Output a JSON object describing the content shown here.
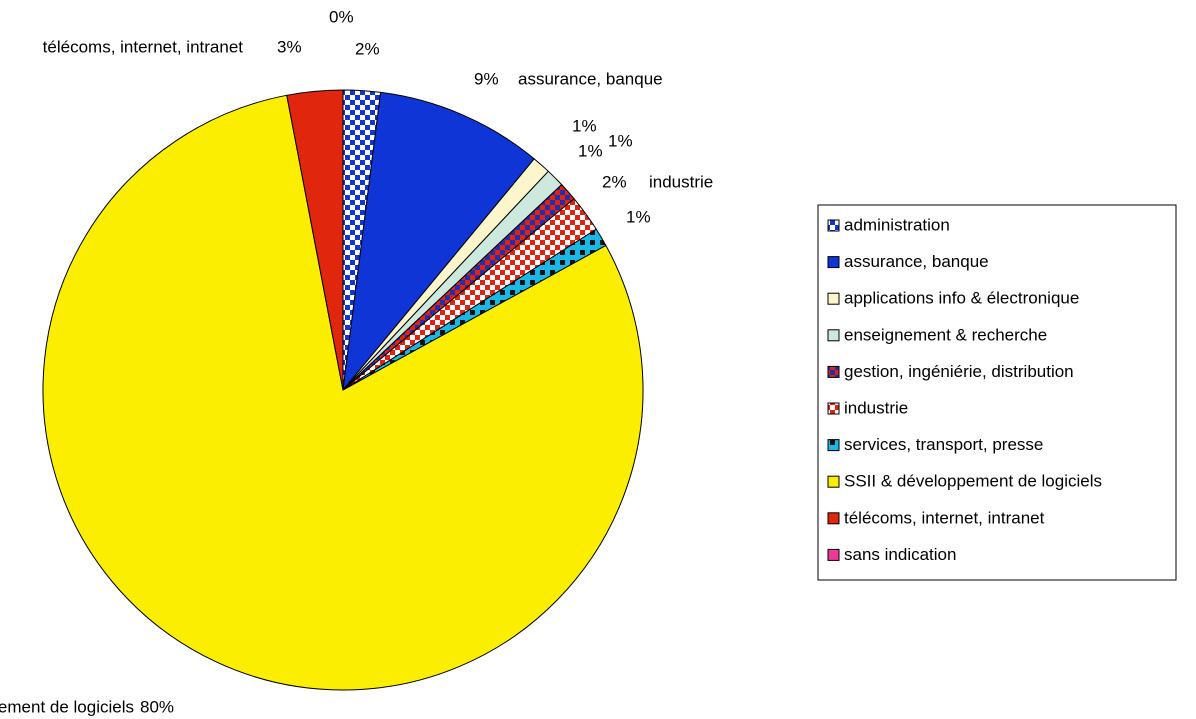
{
  "chart_data": {
    "type": "pie",
    "categories": [
      "administration",
      "assurance, banque",
      "applications info & électronique",
      "enseignement & recherche",
      "gestion, ingéniérie, distribution",
      "industrie",
      "services, transport, presse",
      "SSII & développement de logiciels",
      "télécoms, internet, intranet",
      "sans indication"
    ],
    "values": [
      2,
      9,
      1,
      1,
      1,
      2,
      1,
      80,
      3,
      0
    ],
    "value_labels": [
      "2%",
      "9%",
      "1%",
      "1%",
      "1%",
      "2%",
      "1%",
      "80%",
      "3%",
      "0%"
    ],
    "colors": [
      "#1035d6",
      "#1035d6",
      "#fdf6cc",
      "#cde8dc",
      "#1e2fb0",
      "#e0220e",
      "#1ab8e6",
      "#fbee00",
      "#e0260c",
      "#f0389a"
    ],
    "legend": "right"
  }
}
